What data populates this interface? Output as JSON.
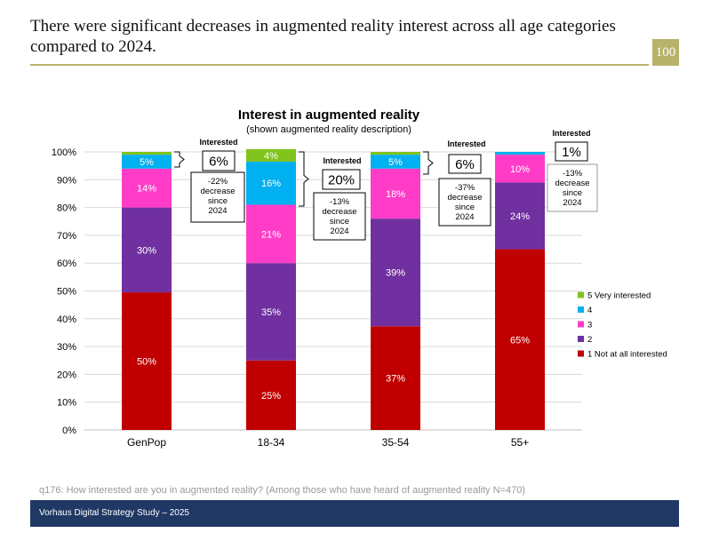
{
  "page": {
    "title": "There were significant decreases in augmented reality interest across all age categories compared to 2024.",
    "page_number": "100",
    "footnote": "q176: How interested are you in augmented reality? (Among those who have heard of augmented reality N=470)",
    "footer": "Vorhaus Digital Strategy Study – 2025"
  },
  "chart_data": {
    "type": "bar",
    "stacked": true,
    "title": "Interest in augmented reality",
    "subtitle": "(shown augmented reality description)",
    "categories": [
      "GenPop",
      "18-34",
      "35-54",
      "55+"
    ],
    "y_ticks": [
      "0%",
      "10%",
      "20%",
      "30%",
      "40%",
      "50%",
      "60%",
      "70%",
      "80%",
      "90%",
      "100%"
    ],
    "ylim": [
      0,
      100
    ],
    "series": [
      {
        "name": "1 Not at all interested",
        "color": "#c00000",
        "values": [
          49.5,
          25,
          37.3,
          65
        ],
        "labels": [
          "50%",
          "25%",
          "37%",
          "65%"
        ]
      },
      {
        "name": "2",
        "color": "#7030a0",
        "values": [
          30.5,
          35,
          38.7,
          24
        ],
        "labels": [
          "30%",
          "35%",
          "39%",
          "24%"
        ]
      },
      {
        "name": "3",
        "color": "#ff3cc8",
        "values": [
          14,
          21,
          18,
          10
        ],
        "labels": [
          "14%",
          "21%",
          "18%",
          "10%"
        ]
      },
      {
        "name": "4",
        "color": "#00b0f0",
        "values": [
          5,
          15.5,
          5,
          1
        ],
        "labels": [
          "5%",
          "16%",
          "5%",
          ""
        ]
      },
      {
        "name": "5 Very interested",
        "color": "#7fc31c",
        "values": [
          1,
          4.5,
          1,
          0
        ],
        "labels": [
          "",
          "4%",
          "",
          ""
        ]
      }
    ],
    "legend_order": [
      4,
      3,
      2,
      1,
      0
    ],
    "callouts": [
      {
        "category": "GenPop",
        "heading": "Interested",
        "value": "6%",
        "change": [
          "-22%",
          "decrease",
          "since",
          "2024"
        ]
      },
      {
        "category": "18-34",
        "heading": "Interested",
        "value": "20%",
        "change": [
          "-13%",
          "decrease",
          "since",
          "2024"
        ]
      },
      {
        "category": "35-54",
        "heading": "Interested",
        "value": "6%",
        "change": [
          "-37%",
          "decrease",
          "since",
          "2024"
        ]
      },
      {
        "category": "55+",
        "heading": "Interested",
        "value": "1%",
        "change": [
          "-13%",
          "decrease",
          "since",
          "2024"
        ]
      }
    ]
  }
}
